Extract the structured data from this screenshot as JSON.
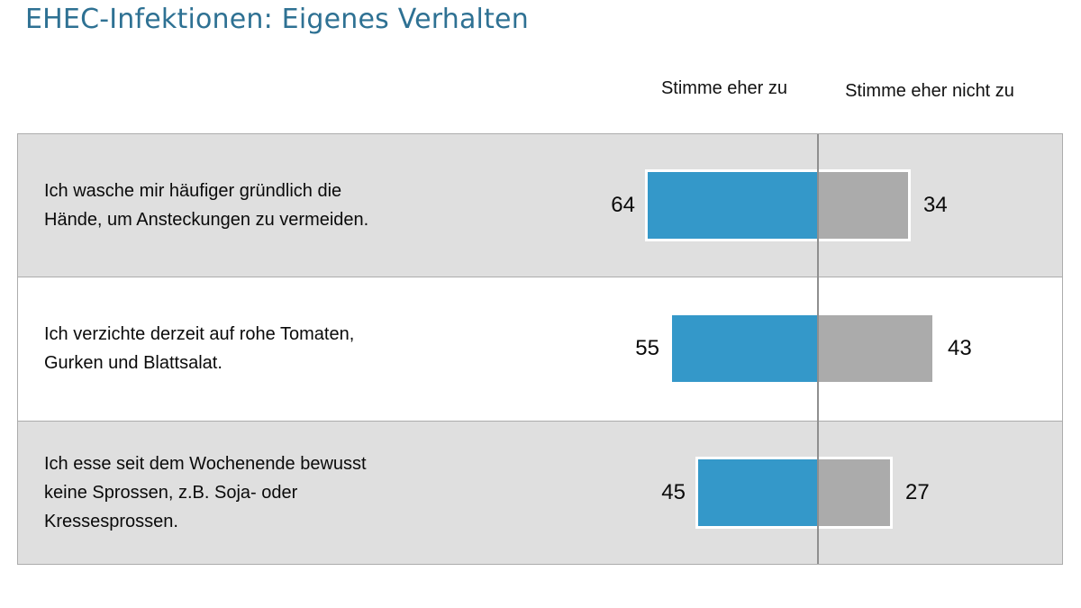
{
  "chart_data": {
    "type": "bar",
    "variant": "diverging-horizontal-paired",
    "title": "EHEC-Infektionen: Eigenes Verhalten",
    "categories": [
      "Ich wasche mir häufiger gründlich die Hände, um Ansteckungen zu vermeiden.",
      "Ich verzichte derzeit auf rohe Tomaten, Gurken und Blattsalat.",
      "Ich esse seit dem Wochenende bewusst keine Sprossen, z.B. Soja- oder Kressesprossen."
    ],
    "category_lines": [
      [
        "Ich wasche mir häufiger gründlich die",
        "Hände, um Ansteckungen zu vermeiden.",
        ""
      ],
      [
        "Ich verzichte derzeit auf rohe Tomaten,",
        "Gurken und Blattsalat.",
        ""
      ],
      [
        "Ich esse seit dem Wochenende bewusst",
        "keine Sprossen, z.B. Soja- oder",
        "Kressesprossen."
      ]
    ],
    "series": [
      {
        "name": "Stimme eher zu",
        "color": "#3498C9",
        "values": [
          64,
          55,
          45
        ]
      },
      {
        "name": "Stimme eher nicht zu",
        "color": "#ABABAB",
        "values": [
          34,
          43,
          27
        ]
      }
    ],
    "legend_position": "top",
    "grid": false,
    "center_axis": true
  },
  "colors": {
    "title": "#2E7193",
    "agree_bar": "#3498C9",
    "disagree_bar": "#ABABAB",
    "row_shaded": "#DFDFDF",
    "row_plain": "#FFFFFF",
    "divider": "#8F8F8F",
    "table_border": "#ACACAC"
  }
}
